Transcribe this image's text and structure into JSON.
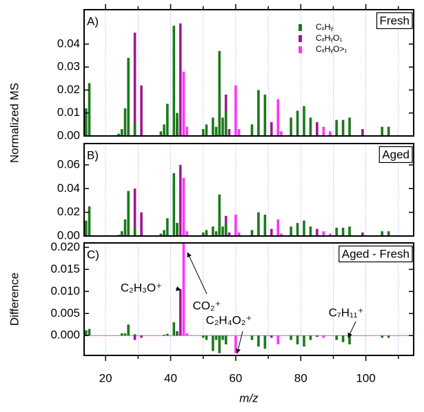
{
  "chart_data": [
    {
      "type": "bar",
      "panel": "A)",
      "label": "Fresh",
      "ylabel": "Normalized MS",
      "grid": true,
      "xlim": [
        13.4,
        114.7
      ],
      "ylim": [
        0,
        0.055
      ],
      "yticks": [
        {
          "value": 0,
          "label": "0.00"
        },
        {
          "value": 0.01,
          "label": "0.01"
        },
        {
          "value": 0.02,
          "label": "0.02"
        },
        {
          "value": 0.03,
          "label": "0.03"
        },
        {
          "value": 0.04,
          "label": "0.04"
        }
      ],
      "series": [
        {
          "name": "CₓHᵧO>₁",
          "color": "#ff33ff",
          "x": [
            44,
            45,
            60,
            61,
            73,
            74,
            87,
            89
          ],
          "values": [
            0.028,
            0.004,
            0.022,
            0.003,
            0.016,
            0.002,
            0.004,
            0.002
          ]
        },
        {
          "name": "CₓHᵧO₁",
          "color": "#9b1a8f",
          "x": [
            29,
            31,
            42,
            43,
            55,
            57,
            58,
            71,
            85,
            99
          ],
          "values": [
            0.045,
            0.022,
            0.008,
            0.049,
            0.018,
            0.018,
            0.003,
            0.006,
            0.006,
            0.003
          ]
        },
        {
          "name": "CₓHᵧ",
          "color": "#1a7a1a",
          "x": [
            12,
            13,
            14,
            15,
            24,
            25,
            26,
            27,
            29,
            37,
            38,
            39,
            41,
            42,
            50,
            51,
            53,
            54,
            55,
            56,
            57,
            65,
            67,
            69,
            77,
            79,
            81,
            83,
            91,
            93,
            95,
            105,
            107
          ],
          "values": [
            0.002,
            0.003,
            0.012,
            0.023,
            0.001,
            0.003,
            0.012,
            0.034,
            0.006,
            0.002,
            0.005,
            0.014,
            0.048,
            0.01,
            0.003,
            0.005,
            0.008,
            0.004,
            0.037,
            0.008,
            0.011,
            0.005,
            0.02,
            0.018,
            0.008,
            0.011,
            0.013,
            0.008,
            0.007,
            0.007,
            0.008,
            0.004,
            0.004
          ]
        }
      ]
    },
    {
      "type": "bar",
      "panel": "B)",
      "label": "Aged",
      "grid": true,
      "xlim": [
        13.4,
        114.7
      ],
      "ylim": [
        0,
        0.078
      ],
      "yticks": [
        {
          "value": 0,
          "label": "0.00"
        },
        {
          "value": 0.02,
          "label": "0.02"
        },
        {
          "value": 0.04,
          "label": "0.04"
        },
        {
          "value": 0.06,
          "label": "0.06"
        }
      ],
      "series": [
        {
          "color": "#ff33ff",
          "x": [
            44,
            45,
            60,
            61,
            73,
            74,
            87,
            89
          ],
          "values": [
            0.049,
            0.004,
            0.018,
            0.003,
            0.014,
            0.002,
            0.004,
            0.002
          ]
        },
        {
          "color": "#9b1a8f",
          "x": [
            29,
            31,
            42,
            43,
            55,
            57,
            58,
            71,
            85,
            99
          ],
          "values": [
            0.04,
            0.02,
            0.011,
            0.06,
            0.018,
            0.017,
            0.003,
            0.006,
            0.006,
            0.003
          ]
        },
        {
          "color": "#1a7a1a",
          "x": [
            12,
            13,
            14,
            15,
            24,
            25,
            26,
            27,
            29,
            37,
            38,
            39,
            41,
            42,
            50,
            51,
            53,
            54,
            55,
            56,
            57,
            65,
            67,
            69,
            77,
            79,
            81,
            83,
            91,
            93,
            95,
            105,
            107
          ],
          "values": [
            0.003,
            0.004,
            0.013,
            0.025,
            0.001,
            0.004,
            0.014,
            0.038,
            0.007,
            0.002,
            0.005,
            0.015,
            0.053,
            0.011,
            0.003,
            0.005,
            0.008,
            0.004,
            0.035,
            0.008,
            0.011,
            0.005,
            0.02,
            0.018,
            0.008,
            0.011,
            0.013,
            0.008,
            0.007,
            0.007,
            0.008,
            0.004,
            0.004
          ]
        }
      ]
    },
    {
      "type": "bar",
      "panel": "C)",
      "label": "Aged - Fresh",
      "ylabel": "Difference",
      "xlabel": "m/z",
      "grid": true,
      "xlim": [
        13.4,
        114.7
      ],
      "ylim": [
        -0.0045,
        0.021
      ],
      "xticks": [
        20,
        40,
        60,
        80,
        100
      ],
      "xminorticks": [
        30,
        50,
        70,
        90,
        110
      ],
      "yticks": [
        {
          "value": 0,
          "label": "0.000"
        },
        {
          "value": 0.005,
          "label": "0.005"
        },
        {
          "value": 0.01,
          "label": "0.010"
        },
        {
          "value": 0.015,
          "label": "0.015"
        },
        {
          "value": 0.02,
          "label": "0.020"
        }
      ],
      "annotations": [
        "C₂H₃O⁺",
        "CO₂⁺",
        "C₂H₄O₂⁺",
        "C₇H₁₁⁺"
      ],
      "series": [
        {
          "color": "#ff33ff",
          "x": [
            44,
            45,
            60,
            61,
            73,
            74,
            87,
            89
          ],
          "values": [
            0.021,
            0.0005,
            -0.004,
            0,
            -0.002,
            0,
            -0.0005,
            0
          ]
        },
        {
          "color": "#9b1a8f",
          "x": [
            29,
            31,
            42,
            43,
            55,
            57,
            58,
            71,
            85,
            99
          ],
          "values": [
            -0.001,
            -0.0005,
            0.001,
            0.0105,
            -0.0005,
            -0.001,
            0,
            -0.0005,
            -0.0003,
            0
          ]
        },
        {
          "color": "#1a7a1a",
          "x": [
            12,
            13,
            14,
            15,
            24,
            25,
            26,
            27,
            29,
            37,
            38,
            39,
            41,
            42,
            50,
            51,
            53,
            54,
            55,
            56,
            57,
            65,
            67,
            69,
            77,
            79,
            81,
            83,
            91,
            93,
            95,
            105,
            107
          ],
          "values": [
            0.0003,
            0.0008,
            0.0012,
            0.0015,
            0,
            0.0005,
            0.0005,
            0.0025,
            0.0003,
            0,
            0.0002,
            0.0004,
            0.003,
            0.0005,
            -0.0005,
            -0.001,
            -0.0035,
            -0.001,
            -0.004,
            -0.001,
            -0.002,
            -0.001,
            -0.0025,
            -0.003,
            -0.001,
            -0.002,
            -0.0025,
            -0.001,
            -0.001,
            -0.0015,
            -0.002,
            -0.0005,
            -0.0005
          ]
        }
      ]
    }
  ]
}
